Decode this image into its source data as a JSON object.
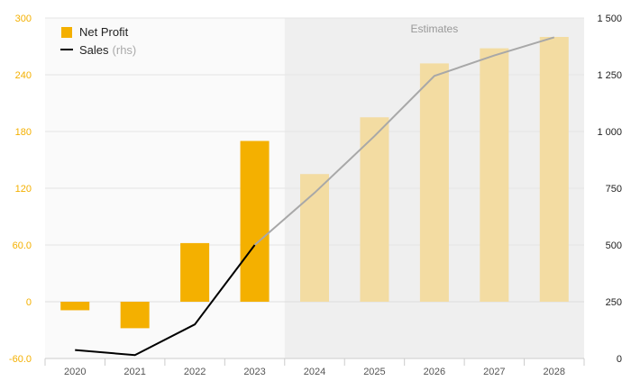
{
  "chart_data": {
    "type": "bar",
    "categories": [
      "2020",
      "2021",
      "2022",
      "2023",
      "2024",
      "2025",
      "2026",
      "2027",
      "2028"
    ],
    "series": [
      {
        "name": "Net Profit",
        "axis": "left",
        "kind": "bar",
        "values": [
          -9,
          -28,
          62,
          170,
          135,
          195,
          252,
          268,
          280
        ],
        "estimate": [
          false,
          false,
          false,
          false,
          true,
          true,
          true,
          true,
          true
        ],
        "color": "#f4b000",
        "estimate_color": "#f3dca2"
      },
      {
        "name": "Sales",
        "name_suffix": "(rhs)",
        "axis": "right",
        "kind": "line",
        "values": [
          37,
          15,
          150,
          500,
          730,
          980,
          1245,
          1335,
          1415
        ],
        "color": "#000000",
        "estimate_color": "#a8a8a8"
      }
    ],
    "left_axis": {
      "ylim": [
        -60,
        300
      ],
      "ticks": [
        "-60.0",
        "0",
        "60.0",
        "120",
        "180",
        "240",
        "300"
      ],
      "tick_values": [
        -60,
        0,
        60,
        120,
        180,
        240,
        300
      ]
    },
    "right_axis": {
      "ylim": [
        0,
        1500
      ],
      "ticks": [
        "0",
        "250",
        "500",
        "750",
        "1 000",
        "1 250",
        "1 500"
      ],
      "tick_values": [
        0,
        250,
        500,
        750,
        1000,
        1250,
        1500
      ]
    },
    "estimates_label": "Estimates",
    "estimates_from": "2024",
    "grid": true,
    "legend_position": "top-left"
  }
}
